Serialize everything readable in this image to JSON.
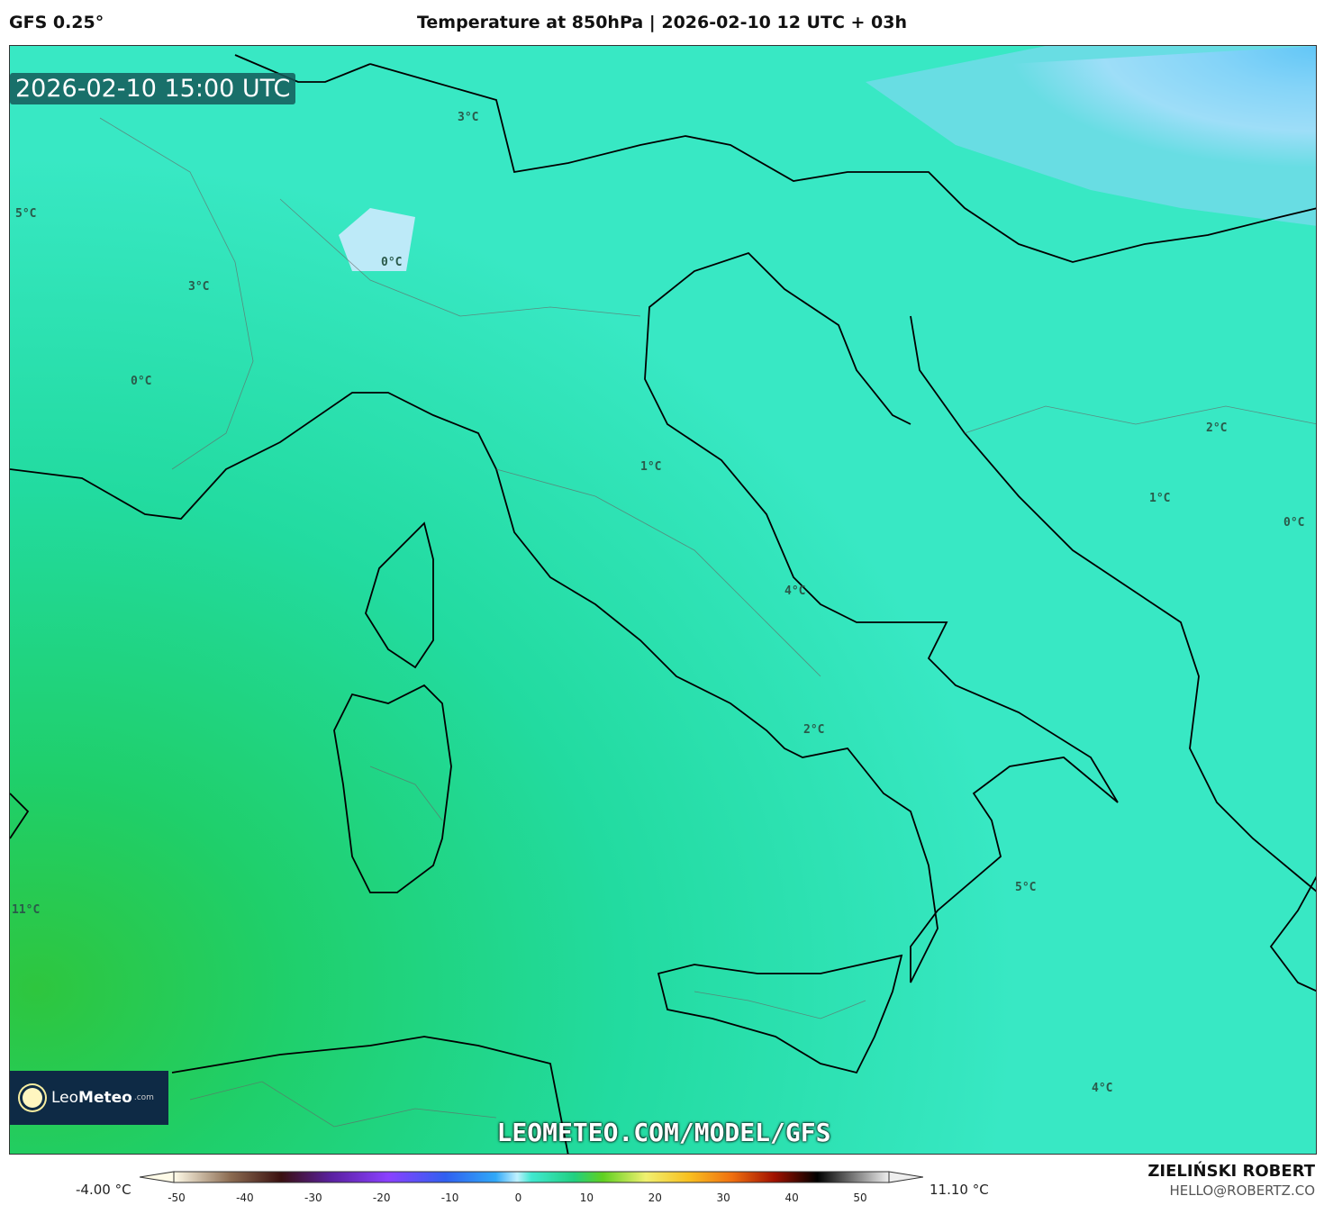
{
  "header": {
    "model": "GFS 0.25°",
    "title": "Temperature at 850hPa | 2026-02-10 12 UTC + 03h"
  },
  "map": {
    "valid_time": "2026-02-10 15:00 UTC",
    "watermark_url": "LEOMETEO.COM/MODEL/GFS",
    "logo": {
      "name_light": "Leo",
      "name_bold": "Meteo",
      "suffix": ".com"
    },
    "contour_labels": [
      "3°C",
      "5°C",
      "3°C",
      "0°C",
      "0°C",
      "1°C",
      "2°C",
      "1°C",
      "0°C",
      "4°C",
      "2°C",
      "5°C",
      "11°C",
      "4°C"
    ],
    "colors": {
      "warm_green": "#1fc35c",
      "mid_green": "#22d494",
      "cyan": "#3ce8c8",
      "light_blue": "#b8ecf8",
      "blue": "#3ab8f4"
    }
  },
  "colorbar": {
    "min_label": "-4.00 °C",
    "max_label": "11.10 °C",
    "ticks": [
      "-50",
      "-40",
      "-30",
      "-20",
      "-10",
      "0",
      "10",
      "20",
      "30",
      "40",
      "50"
    ]
  },
  "credits": {
    "author": "ZIELIŃSKI ROBERT",
    "email": "HELLO@ROBERTZ.CO"
  }
}
